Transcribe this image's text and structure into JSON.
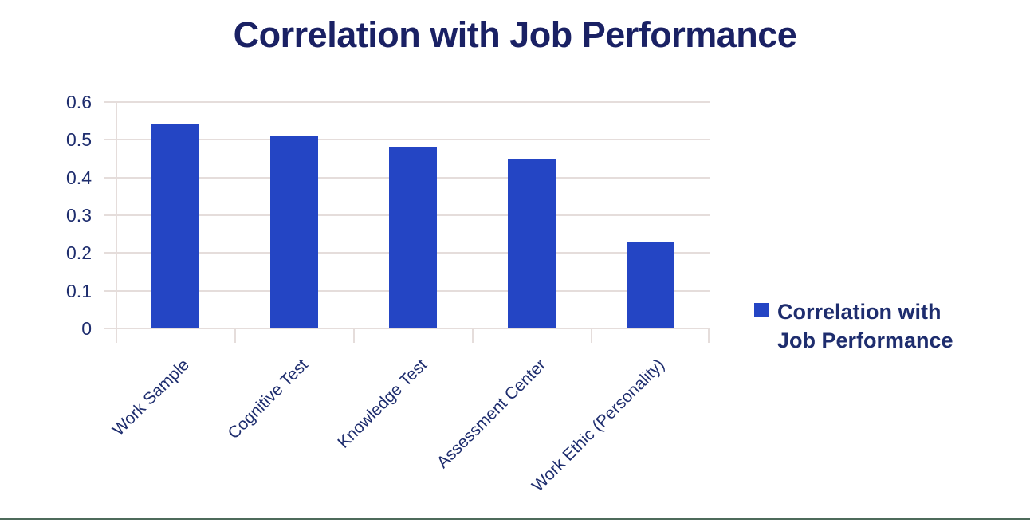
{
  "title": "Correlation with Job Performance",
  "legend": {
    "label": "Correlation with Job Performance"
  },
  "colors": {
    "background": "#ffffff",
    "title_text": "#1a2164",
    "axis_text": "#1e2d6e",
    "bar": "#2445c4",
    "gridline": "#e5dddb",
    "bottom_rule": "#4e6b5b"
  },
  "chart_data": {
    "type": "bar",
    "title": "Correlation with Job Performance",
    "categories": [
      "Work Sample",
      "Cognitive Test",
      "Knowledge Test",
      "Assessment Center",
      "Work Ethic (Personality)"
    ],
    "values": [
      0.54,
      0.51,
      0.48,
      0.45,
      0.23
    ],
    "series_name": "Correlation with Job Performance",
    "xlabel": "",
    "ylabel": "",
    "ylim": [
      0,
      0.6
    ],
    "ytick_step": 0.1,
    "ytick_labels": [
      "0.6",
      "0.5",
      "0.4",
      "0.3",
      "0.2",
      "0.1",
      "0"
    ],
    "grid": true,
    "x_label_rotation_deg": -45,
    "legend_position": "right"
  }
}
